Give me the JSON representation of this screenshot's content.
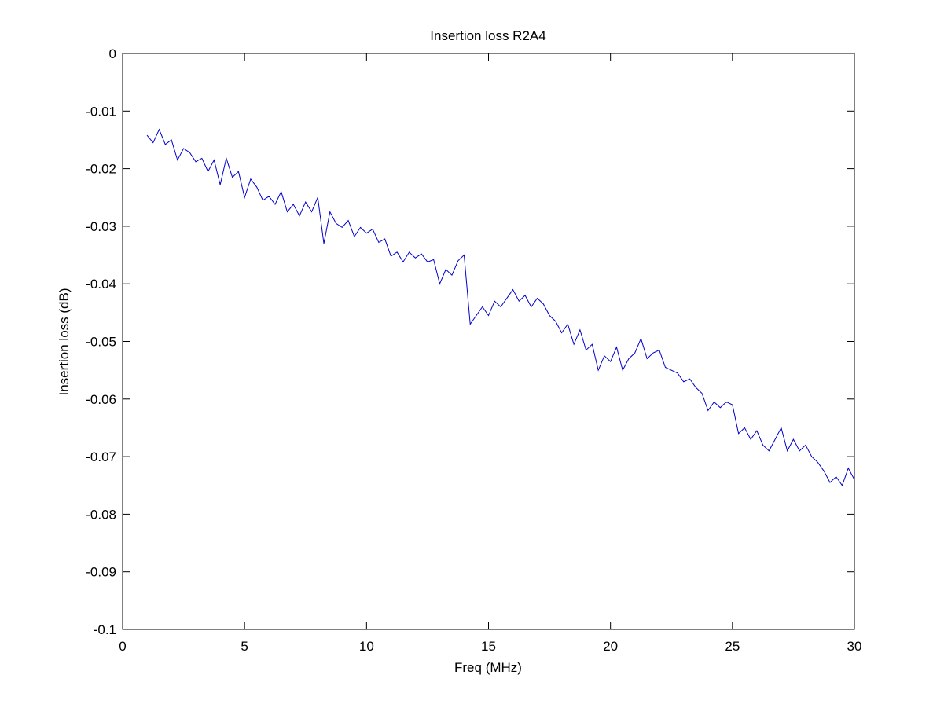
{
  "chart_data": {
    "type": "line",
    "title": "Insertion loss R2A4",
    "xlabel": "Freq (MHz)",
    "ylabel": "Insertion loss (dB)",
    "xlim": [
      0,
      30
    ],
    "ylim": [
      -0.1,
      0
    ],
    "xticks": [
      0,
      5,
      10,
      15,
      20,
      25,
      30
    ],
    "yticks": [
      0,
      -0.01,
      -0.02,
      -0.03,
      -0.04,
      -0.05,
      -0.06,
      -0.07,
      -0.08,
      -0.09,
      -0.1
    ],
    "grid": false,
    "x": [
      1,
      1.25,
      1.5,
      1.75,
      2,
      2.25,
      2.5,
      2.75,
      3,
      3.25,
      3.5,
      3.75,
      4,
      4.25,
      4.5,
      4.75,
      5,
      5.25,
      5.5,
      5.75,
      6,
      6.25,
      6.5,
      6.75,
      7,
      7.25,
      7.5,
      7.75,
      8,
      8.25,
      8.5,
      8.75,
      9,
      9.25,
      9.5,
      9.75,
      10,
      10.25,
      10.5,
      10.75,
      11,
      11.25,
      11.5,
      11.75,
      12,
      12.25,
      12.5,
      12.75,
      13,
      13.25,
      13.5,
      13.75,
      14,
      14.25,
      14.5,
      14.75,
      15,
      15.25,
      15.5,
      15.75,
      16,
      16.25,
      16.5,
      16.75,
      17,
      17.25,
      17.5,
      17.75,
      18,
      18.25,
      18.5,
      18.75,
      19,
      19.25,
      19.5,
      19.75,
      20,
      20.25,
      20.5,
      20.75,
      21,
      21.25,
      21.5,
      21.75,
      22,
      22.25,
      22.5,
      22.75,
      23,
      23.25,
      23.5,
      23.75,
      24,
      24.25,
      24.5,
      24.75,
      25,
      25.25,
      25.5,
      25.75,
      26,
      26.25,
      26.5,
      26.75,
      27,
      27.25,
      27.5,
      27.75,
      28,
      28.25,
      28.5,
      28.75,
      29,
      29.25,
      29.5,
      29.75,
      30
    ],
    "series": [
      {
        "color": "#0000cc",
        "values": [
          -0.0142,
          -0.0155,
          -0.0132,
          -0.0158,
          -0.015,
          -0.0185,
          -0.0165,
          -0.0172,
          -0.0188,
          -0.0182,
          -0.0205,
          -0.0185,
          -0.0228,
          -0.0182,
          -0.0215,
          -0.0205,
          -0.025,
          -0.0218,
          -0.0232,
          -0.0255,
          -0.0248,
          -0.0262,
          -0.024,
          -0.0275,
          -0.0262,
          -0.0282,
          -0.0258,
          -0.0275,
          -0.025,
          -0.033,
          -0.0275,
          -0.0295,
          -0.0302,
          -0.029,
          -0.0318,
          -0.0302,
          -0.0312,
          -0.0305,
          -0.0328,
          -0.0322,
          -0.0352,
          -0.0345,
          -0.0362,
          -0.0345,
          -0.0355,
          -0.0348,
          -0.0362,
          -0.0358,
          -0.04,
          -0.0375,
          -0.0385,
          -0.036,
          -0.035,
          -0.047,
          -0.0455,
          -0.044,
          -0.0455,
          -0.043,
          -0.044,
          -0.0425,
          -0.041,
          -0.043,
          -0.042,
          -0.044,
          -0.0425,
          -0.0435,
          -0.0455,
          -0.0465,
          -0.0485,
          -0.047,
          -0.0505,
          -0.048,
          -0.0515,
          -0.0505,
          -0.055,
          -0.0525,
          -0.0535,
          -0.051,
          -0.055,
          -0.053,
          -0.052,
          -0.0495,
          -0.053,
          -0.052,
          -0.0515,
          -0.0545,
          -0.055,
          -0.0555,
          -0.057,
          -0.0565,
          -0.058,
          -0.059,
          -0.062,
          -0.0605,
          -0.0615,
          -0.0605,
          -0.061,
          -0.066,
          -0.065,
          -0.067,
          -0.0655,
          -0.068,
          -0.069,
          -0.067,
          -0.065,
          -0.069,
          -0.067,
          -0.069,
          -0.068,
          -0.07,
          -0.071,
          -0.0725,
          -0.0745,
          -0.0735,
          -0.075,
          -0.072,
          -0.074
        ]
      }
    ]
  }
}
